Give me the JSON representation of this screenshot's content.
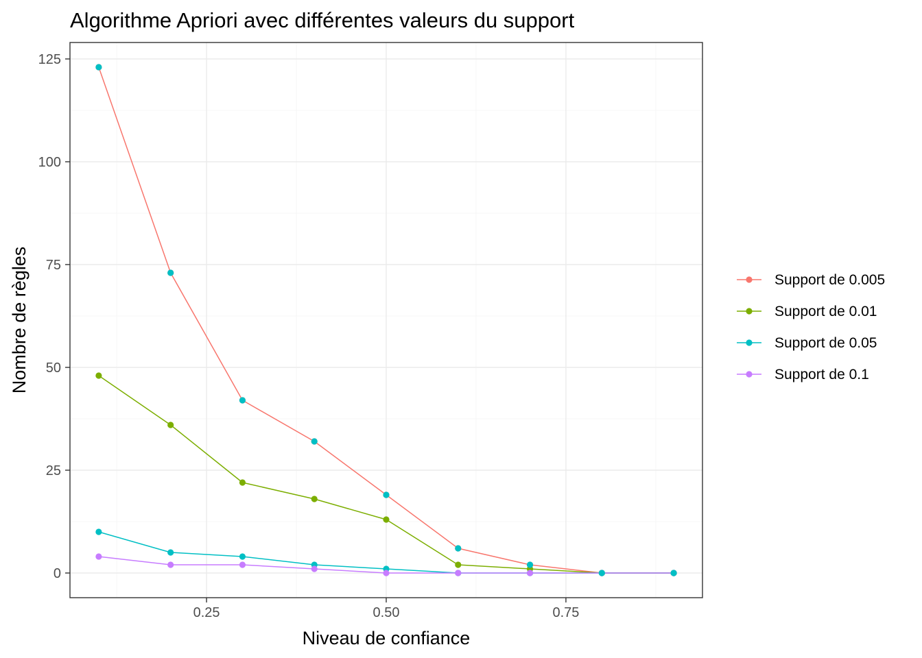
{
  "chart_data": {
    "type": "line",
    "title": "Algorithme Apriori avec différentes valeurs du support",
    "xlabel": "Niveau de confiance",
    "ylabel": "Nombre de règles",
    "xlim": [
      0.06,
      0.94
    ],
    "ylim": [
      -6,
      129
    ],
    "x_ticks": [
      0.25,
      0.5,
      0.75
    ],
    "x_tick_labels": [
      "0.25",
      "0.50",
      "0.75"
    ],
    "y_ticks": [
      0,
      25,
      50,
      75,
      100,
      125
    ],
    "y_tick_labels": [
      "0",
      "25",
      "50",
      "75",
      "100",
      "125"
    ],
    "grid": true,
    "legend_position": "right",
    "x": [
      0.1,
      0.2,
      0.3,
      0.4,
      0.5,
      0.6,
      0.7,
      0.8,
      0.9
    ],
    "series": [
      {
        "name": "Support de 0.005",
        "color": "#F8766D",
        "values": [
          123,
          73,
          42,
          32,
          19,
          6,
          2,
          0,
          0
        ]
      },
      {
        "name": "Support de 0.01",
        "color": "#7CAE00",
        "values": [
          48,
          36,
          22,
          18,
          13,
          2,
          1,
          0,
          0
        ]
      },
      {
        "name": "Support de 0.05",
        "color": "#00BFC4",
        "values": [
          10,
          5,
          4,
          2,
          1,
          0,
          0,
          0,
          0
        ]
      },
      {
        "name": "Support de 0.1",
        "color": "#C77CFF",
        "values": [
          4,
          2,
          2,
          1,
          0,
          0,
          0,
          0,
          0
        ]
      }
    ],
    "overlay_points": {
      "color": "#00BFC4",
      "values": [
        123,
        73,
        42,
        32,
        19,
        6,
        2,
        0,
        0
      ]
    }
  }
}
